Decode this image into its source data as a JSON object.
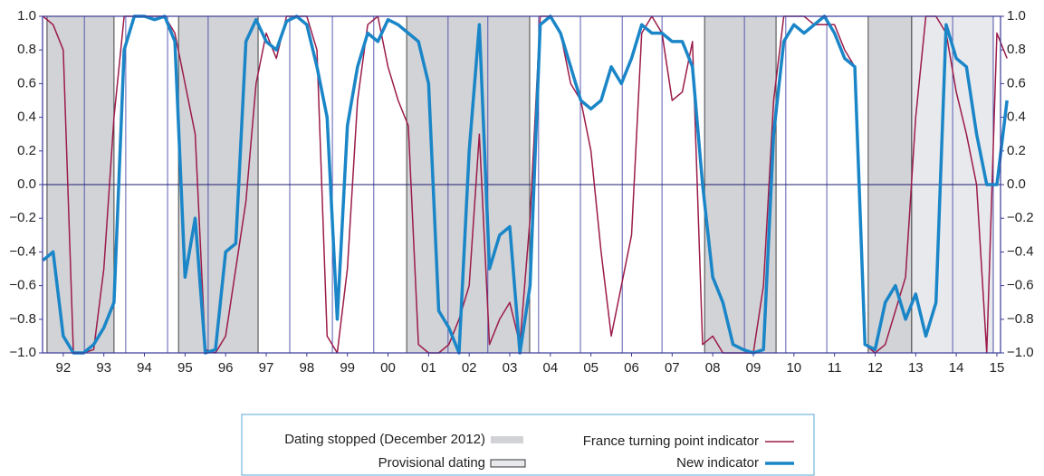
{
  "chart_data": {
    "type": "line",
    "x": [
      1991.5,
      1991.75,
      1992.0,
      1992.25,
      1992.5,
      1992.75,
      1993.0,
      1993.25,
      1993.5,
      1993.75,
      1994.0,
      1994.25,
      1994.5,
      1994.75,
      1995.0,
      1995.25,
      1995.5,
      1995.75,
      1996.0,
      1996.25,
      1996.5,
      1996.75,
      1997.0,
      1997.25,
      1997.5,
      1997.75,
      1998.0,
      1998.25,
      1998.5,
      1998.75,
      1999.0,
      1999.25,
      1999.5,
      1999.75,
      2000.0,
      2000.25,
      2000.5,
      2000.75,
      2001.0,
      2001.25,
      2001.5,
      2001.75,
      2002.0,
      2002.25,
      2002.5,
      2002.75,
      2003.0,
      2003.25,
      2003.5,
      2003.75,
      2004.0,
      2004.25,
      2004.5,
      2004.75,
      2005.0,
      2005.25,
      2005.5,
      2005.75,
      2006.0,
      2006.25,
      2006.5,
      2006.75,
      2007.0,
      2007.25,
      2007.5,
      2007.75,
      2008.0,
      2008.25,
      2008.5,
      2008.75,
      2009.0,
      2009.25,
      2009.5,
      2009.75,
      2010.0,
      2010.25,
      2010.5,
      2010.75,
      2011.0,
      2011.25,
      2011.5,
      2011.75,
      2012.0,
      2012.25,
      2012.5,
      2012.75,
      2013.0,
      2013.25,
      2013.5,
      2013.75,
      2014.0,
      2014.25,
      2014.5,
      2014.75,
      2015.0,
      2015.25
    ],
    "series": [
      {
        "name": "France turning point indicator",
        "color": "#9b1b4a",
        "width": 1.5,
        "values": [
          1.0,
          0.95,
          0.8,
          -1.0,
          -1.0,
          -0.98,
          -0.5,
          0.4,
          1.0,
          1.0,
          1.0,
          1.0,
          1.0,
          0.9,
          0.6,
          0.3,
          -0.98,
          -1.0,
          -0.9,
          -0.5,
          -0.1,
          0.6,
          0.9,
          0.75,
          1.0,
          1.0,
          1.0,
          0.8,
          -0.9,
          -1.0,
          -0.5,
          0.5,
          0.95,
          1.0,
          0.7,
          0.5,
          0.35,
          -0.95,
          -1.0,
          -1.0,
          -0.95,
          -0.8,
          -0.6,
          0.3,
          -0.95,
          -0.8,
          -0.7,
          -0.95,
          -0.2,
          1.0,
          1.0,
          0.9,
          0.6,
          0.5,
          0.2,
          -0.4,
          -0.9,
          -0.6,
          -0.3,
          0.9,
          1.0,
          0.9,
          0.5,
          0.55,
          0.85,
          -0.95,
          -0.9,
          -1.0,
          -1.0,
          -1.0,
          -1.0,
          -0.6,
          0.5,
          1.0,
          1.0,
          1.0,
          0.95,
          0.95,
          0.95,
          0.8,
          0.7,
          -0.95,
          -1.0,
          -0.95,
          -0.75,
          -0.55,
          0.4,
          1.0,
          1.0,
          0.9,
          0.55,
          0.3,
          0.0,
          -1.0,
          0.9,
          0.75
        ]
      },
      {
        "name": "New indicator",
        "color": "#1a86c8",
        "width": 3.5,
        "values": [
          -0.45,
          -0.4,
          -0.9,
          -1.0,
          -1.0,
          -0.95,
          -0.85,
          -0.7,
          0.8,
          1.0,
          1.0,
          0.98,
          1.0,
          0.85,
          -0.55,
          -0.2,
          -1.0,
          -0.98,
          -0.4,
          -0.35,
          0.85,
          0.98,
          0.85,
          0.8,
          0.97,
          1.0,
          0.95,
          0.7,
          0.4,
          -0.8,
          0.35,
          0.7,
          0.9,
          0.85,
          0.98,
          0.95,
          0.9,
          0.85,
          0.6,
          -0.75,
          -0.85,
          -1.0,
          0.2,
          0.95,
          -0.5,
          -0.3,
          -0.25,
          -1.0,
          -0.6,
          0.95,
          1.0,
          0.9,
          0.7,
          0.5,
          0.45,
          0.5,
          0.7,
          0.6,
          0.75,
          0.95,
          0.9,
          0.9,
          0.85,
          0.85,
          0.7,
          0.0,
          -0.55,
          -0.7,
          -0.95,
          -0.98,
          -1.0,
          -0.98,
          0.3,
          0.85,
          0.95,
          0.9,
          0.95,
          1.0,
          0.9,
          0.75,
          0.7,
          -0.95,
          -0.98,
          -0.7,
          -0.6,
          -0.8,
          -0.65,
          -0.9,
          -0.7,
          0.95,
          0.75,
          0.7,
          0.3,
          0.0,
          0.0,
          0.5
        ]
      }
    ],
    "shaded": [
      {
        "name": "Dating stopped (December 2012)",
        "color": "#d2d3d6",
        "ranges": [
          [
            1991.6,
            1993.25
          ],
          [
            1994.84,
            1996.8
          ],
          [
            2000.46,
            2003.49
          ],
          [
            2007.8,
            2009.56
          ],
          [
            2011.83,
            2012.9
          ]
        ]
      },
      {
        "name": "Provisional dating",
        "color": "#e8e9ec",
        "ranges": [
          [
            2012.9,
            2014.91
          ]
        ]
      }
    ],
    "vlines": [
      1992.52,
      1993.54,
      1994.57,
      1995.57,
      1997.58,
      1998.63,
      1999.65,
      2001.48,
      2002.46,
      2003.71,
      2004.74,
      2005.77,
      2006.75,
      2008.78,
      2009.8,
      2010.81,
      2013.91,
      2014.91
    ],
    "xlim": [
      1991.49,
      2015.09
    ],
    "xticks": [
      {
        "value": 1992,
        "label": "92"
      },
      {
        "value": 1993,
        "label": "93"
      },
      {
        "value": 1994,
        "label": "94"
      },
      {
        "value": 1995,
        "label": "95"
      },
      {
        "value": 1996,
        "label": "96"
      },
      {
        "value": 1997,
        "label": "97"
      },
      {
        "value": 1998,
        "label": "98"
      },
      {
        "value": 1999,
        "label": "99"
      },
      {
        "value": 2000,
        "label": "00"
      },
      {
        "value": 2001,
        "label": "01"
      },
      {
        "value": 2002,
        "label": "02"
      },
      {
        "value": 2003,
        "label": "03"
      },
      {
        "value": 2004,
        "label": "04"
      },
      {
        "value": 2005,
        "label": "05"
      },
      {
        "value": 2006,
        "label": "06"
      },
      {
        "value": 2007,
        "label": "07"
      },
      {
        "value": 2008,
        "label": "08"
      },
      {
        "value": 2009,
        "label": "09"
      },
      {
        "value": 2010,
        "label": "10"
      },
      {
        "value": 2011,
        "label": "11"
      },
      {
        "value": 2012,
        "label": "12"
      },
      {
        "value": 2013,
        "label": "13"
      },
      {
        "value": 2014,
        "label": "14"
      },
      {
        "value": 2015,
        "label": "15"
      }
    ],
    "ylim": [
      -1,
      1
    ],
    "yticks": [
      {
        "value": 1,
        "label": "1.0"
      },
      {
        "value": 0.8,
        "label": "0.8"
      },
      {
        "value": 0.6,
        "label": "0.6"
      },
      {
        "value": 0.4,
        "label": "0.4"
      },
      {
        "value": 0.2,
        "label": "0.2"
      },
      {
        "value": 0,
        "label": "0.0"
      },
      {
        "value": -0.2,
        "label": "−0.2"
      },
      {
        "value": -0.4,
        "label": "−0.4"
      },
      {
        "value": -0.6,
        "label": "−0.6"
      },
      {
        "value": -0.8,
        "label": "−0.8"
      },
      {
        "value": -1,
        "label": "−1.0"
      }
    ],
    "y2lim": [
      -1,
      1
    ],
    "y2ticks": [
      {
        "value": 1,
        "label": "1.0"
      },
      {
        "value": 0.8,
        "label": "0.8"
      },
      {
        "value": 0.6,
        "label": "0.6"
      },
      {
        "value": 0.4,
        "label": "0.4"
      },
      {
        "value": 0.2,
        "label": "0.2"
      },
      {
        "value": 0,
        "label": "0.0"
      },
      {
        "value": -0.2,
        "label": "−0.2"
      },
      {
        "value": -0.4,
        "label": "−0.4"
      },
      {
        "value": -0.6,
        "label": "−0.6"
      },
      {
        "value": -0.8,
        "label": "−0.8"
      },
      {
        "value": -1,
        "label": "−1.0"
      }
    ],
    "legend": "bottom"
  }
}
